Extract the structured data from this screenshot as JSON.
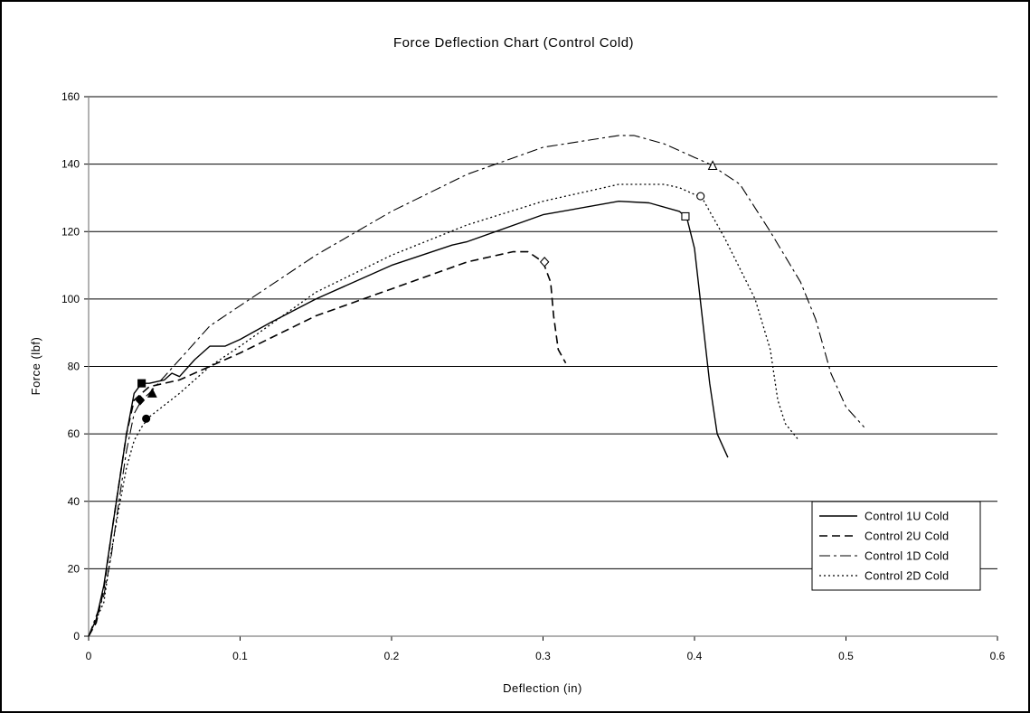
{
  "chart_data": {
    "type": "line",
    "title": "Force Deflection Chart (Control Cold)",
    "xlabel": "Deflection (in)",
    "ylabel": "Force (lbf)",
    "xlim": [
      0,
      0.6
    ],
    "ylim": [
      0,
      160
    ],
    "xticks": [
      0,
      0.1,
      0.2,
      0.3,
      0.4,
      0.5,
      0.6
    ],
    "xtick_labels": [
      "0",
      "0.1",
      "0.2",
      "0.3",
      "0.4",
      "0.5",
      "0.6"
    ],
    "yticks": [
      0,
      20,
      40,
      60,
      80,
      100,
      120,
      140,
      160
    ],
    "ytick_labels": [
      "0",
      "20",
      "40",
      "60",
      "80",
      "100",
      "120",
      "140",
      "160"
    ],
    "grid": "horizontal",
    "legend_position": "bottom-right",
    "series": [
      {
        "name": "Control 1U Cold",
        "style": "solid",
        "x": [
          0,
          0.005,
          0.01,
          0.015,
          0.02,
          0.025,
          0.03,
          0.035,
          0.04,
          0.05,
          0.055,
          0.06,
          0.07,
          0.08,
          0.09,
          0.1,
          0.12,
          0.15,
          0.2,
          0.24,
          0.25,
          0.3,
          0.35,
          0.37,
          0.39,
          0.395,
          0.4,
          0.405,
          0.41,
          0.415,
          0.422
        ],
        "y": [
          0,
          5,
          15,
          30,
          45,
          60,
          72,
          75,
          75,
          76,
          78,
          77,
          82,
          86,
          86,
          88,
          93,
          100,
          110,
          116,
          117,
          125,
          129,
          128.5,
          126,
          124,
          115,
          95,
          75,
          60,
          53
        ],
        "markers": [
          {
            "x": 0.035,
            "y": 75,
            "shape": "square-filled"
          },
          {
            "x": 0.394,
            "y": 124.5,
            "shape": "square-open"
          }
        ]
      },
      {
        "name": "Control 2U Cold",
        "style": "dashed",
        "x": [
          0,
          0.005,
          0.01,
          0.015,
          0.02,
          0.025,
          0.03,
          0.035,
          0.04,
          0.06,
          0.08,
          0.1,
          0.15,
          0.2,
          0.25,
          0.28,
          0.29,
          0.3,
          0.305,
          0.307,
          0.31,
          0.315
        ],
        "y": [
          0,
          4,
          14,
          30,
          45,
          60,
          70,
          72,
          74,
          76,
          80,
          84,
          95,
          103,
          111,
          114,
          114,
          111,
          105,
          95,
          85,
          81
        ],
        "markers": [
          {
            "x": 0.034,
            "y": 70,
            "shape": "diamond-filled"
          },
          {
            "x": 0.301,
            "y": 111,
            "shape": "diamond-open"
          }
        ]
      },
      {
        "name": "Control 1D Cold",
        "style": "dash-dot",
        "x": [
          0,
          0.01,
          0.015,
          0.02,
          0.025,
          0.03,
          0.035,
          0.04,
          0.06,
          0.08,
          0.1,
          0.15,
          0.2,
          0.25,
          0.3,
          0.35,
          0.36,
          0.38,
          0.4,
          0.41,
          0.43,
          0.45,
          0.47,
          0.48,
          0.49,
          0.5,
          0.512
        ],
        "y": [
          0,
          12,
          24,
          40,
          55,
          66,
          70,
          72,
          82,
          92,
          98,
          113,
          126,
          137,
          145,
          148.5,
          148.5,
          146,
          142,
          140,
          134,
          120,
          105,
          94,
          78,
          68,
          62
        ],
        "markers": [
          {
            "x": 0.042,
            "y": 72,
            "shape": "triangle-filled"
          },
          {
            "x": 0.412,
            "y": 139.5,
            "shape": "triangle-open"
          }
        ]
      },
      {
        "name": "Control 2D Cold",
        "style": "dotted",
        "x": [
          0,
          0.01,
          0.015,
          0.02,
          0.025,
          0.03,
          0.035,
          0.04,
          0.06,
          0.08,
          0.1,
          0.15,
          0.2,
          0.25,
          0.3,
          0.35,
          0.38,
          0.39,
          0.4,
          0.405,
          0.42,
          0.44,
          0.45,
          0.455,
          0.46,
          0.469
        ],
        "y": [
          0,
          10,
          25,
          38,
          50,
          58,
          62,
          65,
          72,
          80,
          86,
          102,
          113,
          122,
          129,
          134,
          134,
          133,
          131,
          130,
          118,
          100,
          85,
          70,
          63,
          58
        ],
        "markers": [
          {
            "x": 0.038,
            "y": 64.5,
            "shape": "circle-filled"
          },
          {
            "x": 0.404,
            "y": 130.5,
            "shape": "circle-open"
          }
        ]
      }
    ]
  }
}
